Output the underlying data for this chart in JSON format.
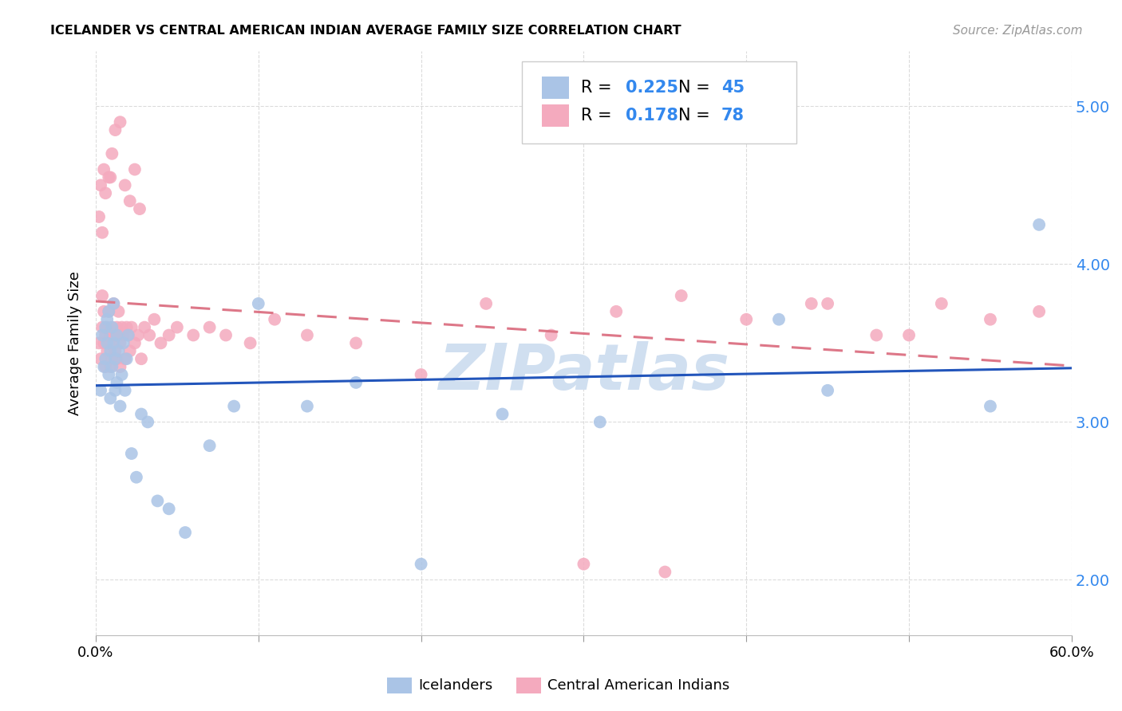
{
  "title": "ICELANDER VS CENTRAL AMERICAN INDIAN AVERAGE FAMILY SIZE CORRELATION CHART",
  "source": "Source: ZipAtlas.com",
  "ylabel": "Average Family Size",
  "xlim": [
    0.0,
    0.6
  ],
  "ylim": [
    1.65,
    5.35
  ],
  "yticks": [
    2.0,
    3.0,
    4.0,
    5.0
  ],
  "xtick_positions": [
    0.0,
    0.1,
    0.2,
    0.3,
    0.4,
    0.5,
    0.6
  ],
  "xtick_labels": [
    "0.0%",
    "",
    "",
    "",
    "",
    "",
    "60.0%"
  ],
  "icelander_color": "#aac4e6",
  "central_american_color": "#f4aabe",
  "ice_line_color": "#2255bb",
  "cam_line_color": "#dd7788",
  "legend_blue": "#3388ee",
  "legend_border": "#cccccc",
  "watermark": "ZIPatlas",
  "watermark_color": "#d0dff0",
  "grid_color": "#cccccc",
  "icelander_N": 45,
  "central_american_N": 78,
  "icelander_R": 0.225,
  "central_american_R": 0.178,
  "ice_x": [
    0.003,
    0.004,
    0.005,
    0.006,
    0.006,
    0.007,
    0.007,
    0.008,
    0.008,
    0.009,
    0.009,
    0.01,
    0.01,
    0.011,
    0.011,
    0.012,
    0.012,
    0.013,
    0.013,
    0.014,
    0.015,
    0.016,
    0.017,
    0.018,
    0.019,
    0.02,
    0.022,
    0.025,
    0.028,
    0.032,
    0.038,
    0.045,
    0.055,
    0.07,
    0.085,
    0.1,
    0.13,
    0.16,
    0.2,
    0.25,
    0.31,
    0.42,
    0.45,
    0.55,
    0.58
  ],
  "ice_y": [
    3.2,
    3.55,
    3.35,
    3.6,
    3.4,
    3.5,
    3.65,
    3.3,
    3.7,
    3.45,
    3.15,
    3.6,
    3.35,
    3.5,
    3.75,
    3.2,
    3.4,
    3.55,
    3.25,
    3.45,
    3.1,
    3.3,
    3.5,
    3.2,
    3.4,
    3.55,
    2.8,
    2.65,
    3.05,
    3.0,
    2.5,
    2.45,
    2.3,
    2.85,
    3.1,
    3.75,
    3.1,
    3.25,
    2.1,
    3.05,
    3.0,
    3.65,
    3.2,
    3.1,
    4.25
  ],
  "cam_x": [
    0.002,
    0.003,
    0.004,
    0.004,
    0.005,
    0.005,
    0.006,
    0.006,
    0.007,
    0.007,
    0.008,
    0.008,
    0.009,
    0.009,
    0.01,
    0.01,
    0.011,
    0.011,
    0.012,
    0.012,
    0.013,
    0.013,
    0.014,
    0.014,
    0.015,
    0.015,
    0.016,
    0.017,
    0.018,
    0.019,
    0.02,
    0.021,
    0.022,
    0.024,
    0.026,
    0.028,
    0.03,
    0.033,
    0.036,
    0.04,
    0.045,
    0.05,
    0.06,
    0.07,
    0.08,
    0.095,
    0.11,
    0.13,
    0.16,
    0.2,
    0.24,
    0.28,
    0.32,
    0.36,
    0.4,
    0.44,
    0.48,
    0.52,
    0.55,
    0.58,
    0.003,
    0.005,
    0.008,
    0.01,
    0.012,
    0.015,
    0.018,
    0.021,
    0.024,
    0.027,
    0.002,
    0.004,
    0.006,
    0.009,
    0.3,
    0.35,
    0.45,
    0.5
  ],
  "cam_y": [
    3.5,
    3.4,
    3.6,
    3.8,
    3.5,
    3.7,
    3.55,
    3.35,
    3.6,
    3.45,
    3.7,
    3.5,
    3.55,
    3.35,
    3.6,
    3.4,
    3.55,
    3.75,
    3.45,
    3.55,
    3.6,
    3.4,
    3.55,
    3.7,
    3.5,
    3.35,
    3.6,
    3.55,
    3.4,
    3.6,
    3.55,
    3.45,
    3.6,
    3.5,
    3.55,
    3.4,
    3.6,
    3.55,
    3.65,
    3.5,
    3.55,
    3.6,
    3.55,
    3.6,
    3.55,
    3.5,
    3.65,
    3.55,
    3.5,
    3.3,
    3.75,
    3.55,
    3.7,
    3.8,
    3.65,
    3.75,
    3.55,
    3.75,
    3.65,
    3.7,
    4.5,
    4.6,
    4.55,
    4.7,
    4.85,
    4.9,
    4.5,
    4.4,
    4.6,
    4.35,
    4.3,
    4.2,
    4.45,
    4.55,
    2.1,
    2.05,
    3.75,
    3.55
  ]
}
